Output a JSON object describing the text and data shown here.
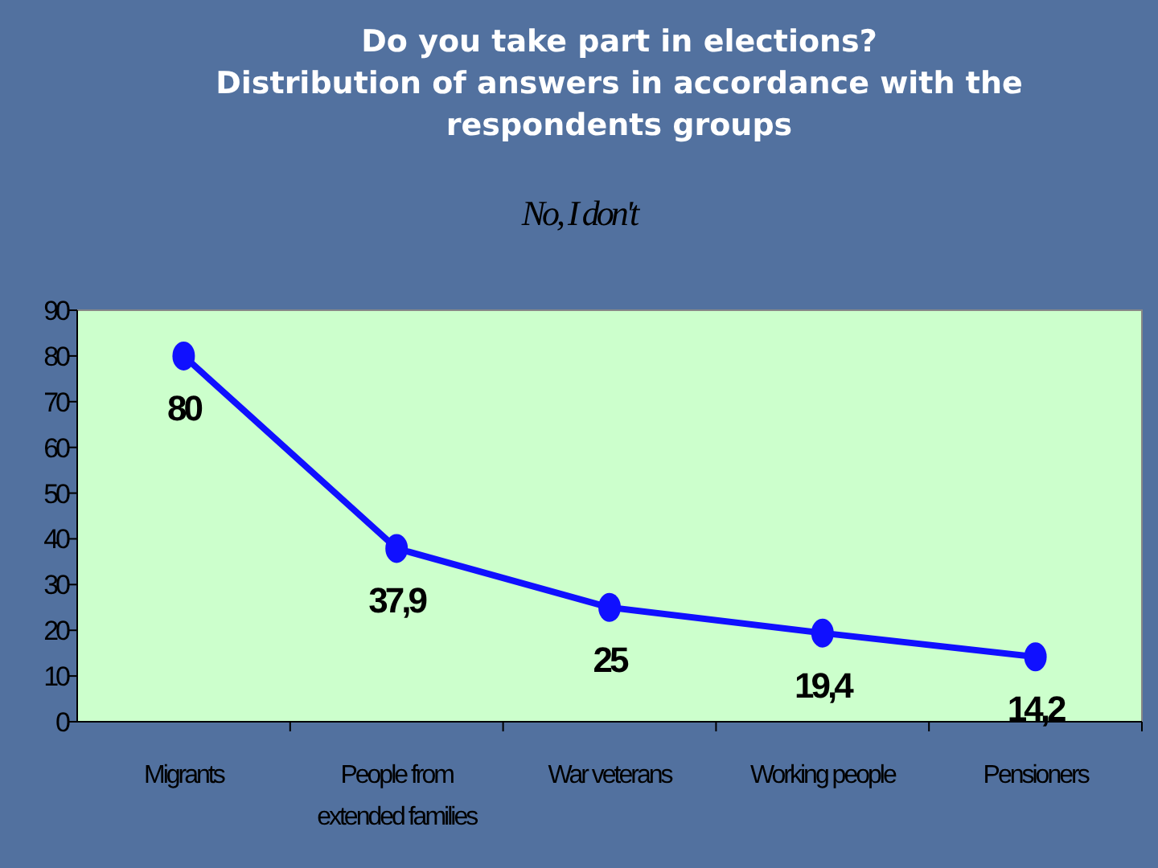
{
  "chart_data": {
    "type": "line",
    "title": "Do you take part in elections?\nDistribution of answers in accordance with the respondents groups",
    "subtitle": "No, I don't",
    "categories": [
      "Migrants",
      "People from extended families",
      "War veterans",
      "Working people",
      "Pensioners"
    ],
    "series": [
      {
        "color": "#1010ff",
        "values": [
          80,
          37.9,
          25,
          19.4,
          14.2
        ],
        "value_labels": [
          "80",
          "37,9",
          "25",
          "19,4",
          "14,2"
        ]
      }
    ],
    "ylim": [
      0,
      90
    ],
    "yticks": [
      0,
      10,
      20,
      30,
      40,
      50,
      60,
      70,
      80,
      90
    ],
    "grid": false,
    "marker": "circle",
    "line_style": "solid"
  }
}
